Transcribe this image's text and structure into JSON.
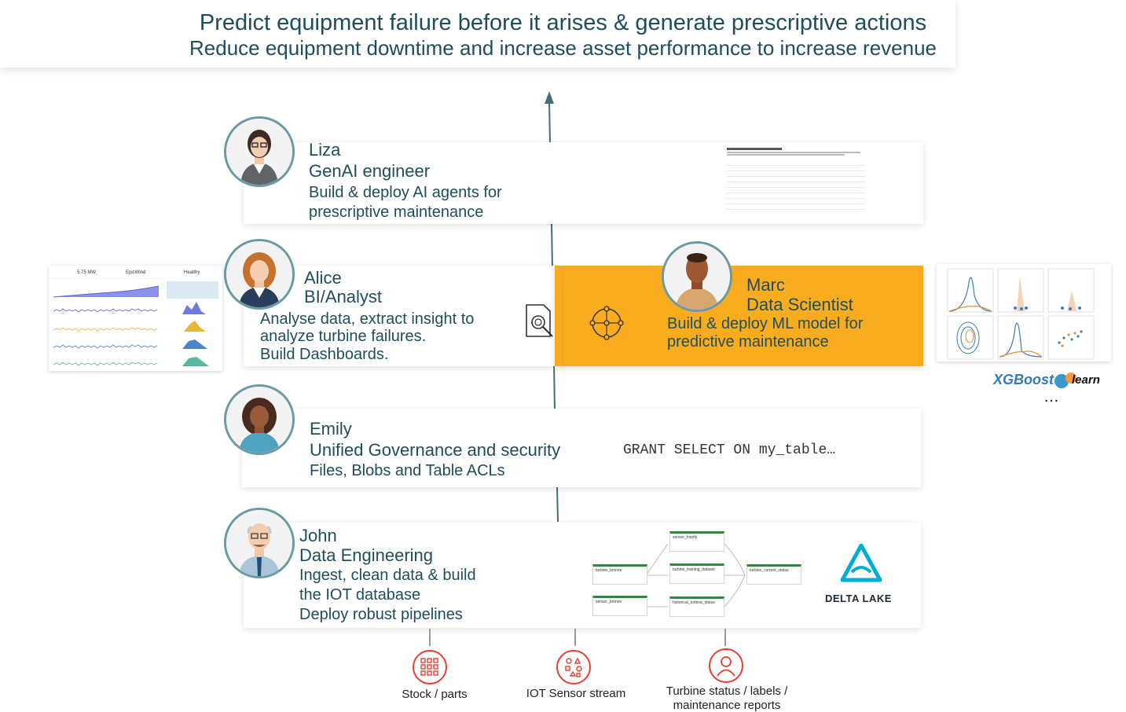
{
  "header": {
    "line1": "Predict equipment failure before it arises  & generate prescriptive actions",
    "line2": "Reduce equipment downtime and increase asset performance to increase revenue"
  },
  "personas": {
    "liza": {
      "name": "Liza",
      "role": "GenAI engineer",
      "desc1": "Build & deploy AI agents for",
      "desc2": "prescriptive maintenance"
    },
    "alice": {
      "name": "Alice",
      "role": "BI/Analyst",
      "desc1": "Analyse data, extract insight to",
      "desc2": "analyze turbine failures.",
      "desc3": "Build Dashboards."
    },
    "marc": {
      "name": "Marc",
      "role": "Data Scientist",
      "desc1": "Build & deploy ML model for",
      "desc2": "predictive maintenance"
    },
    "emily": {
      "name": "Emily",
      "role": "Unified Governance and security",
      "desc1": "Files, Blobs and Table ACLs",
      "code": "GRANT SELECT ON my_table…"
    },
    "john": {
      "name": "John",
      "role": "Data Engineering",
      "desc1": "Ingest, clean data & build",
      "desc2": "the IOT database",
      "desc3": "Deploy robust pipelines"
    }
  },
  "dashboard": {
    "kpi1": "5.75 MW",
    "kpi2": "EpicWind",
    "kpi3": "Healthy"
  },
  "ml_logos": {
    "xgboost": "XGBoost",
    "sklearn": "learn",
    "ellipsis": "…"
  },
  "pipeline": {
    "nodes": [
      "turbine_bronze",
      "sensor_bronze",
      "sensor_hourly",
      "turbine_training_dataset",
      "historical_turbine_status",
      "turbine_current_status"
    ]
  },
  "delta": {
    "label": "DELTA LAKE"
  },
  "sources": [
    {
      "label": "Stock / parts",
      "icon": "grid-icon"
    },
    {
      "label": "IOT Sensor stream",
      "icon": "sensor-icon"
    },
    {
      "label1": "Turbine status / labels /",
      "label2": "maintenance reports",
      "icon": "user-icon"
    }
  ],
  "colors": {
    "accent": "#f9ac1d",
    "teal": "#1f4e5a",
    "source_red": "#e5402f",
    "delta_blue": "#00add4",
    "line": "#436f77"
  }
}
